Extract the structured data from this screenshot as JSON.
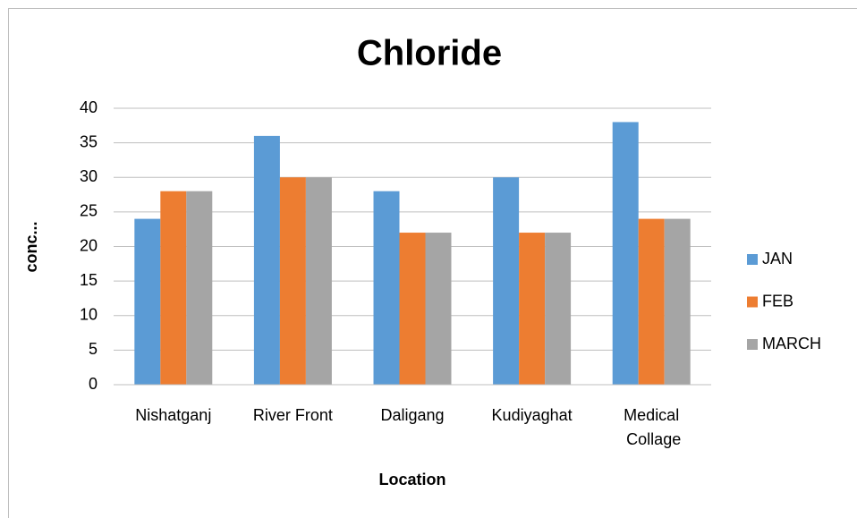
{
  "chart_data": {
    "type": "bar",
    "title": "Chloride",
    "x_label": "Location",
    "y_label": "conc...",
    "categories": [
      "Nishatganj",
      "River Front",
      "Daligang",
      "Kudiyaghat",
      "Medical Collage"
    ],
    "series": [
      {
        "name": "JAN",
        "color": "#5b9bd5",
        "values": [
          24,
          36,
          28,
          30,
          38
        ]
      },
      {
        "name": "FEB",
        "color": "#ed7d31",
        "values": [
          28,
          30,
          22,
          22,
          24
        ]
      },
      {
        "name": "MARCH",
        "color": "#a5a5a5",
        "values": [
          28,
          30,
          22,
          22,
          24
        ]
      }
    ],
    "ylim": [
      0,
      40
    ],
    "yticks": [
      0,
      5,
      10,
      15,
      20,
      25,
      30,
      35,
      40
    ],
    "grid": true,
    "legend": "right"
  }
}
